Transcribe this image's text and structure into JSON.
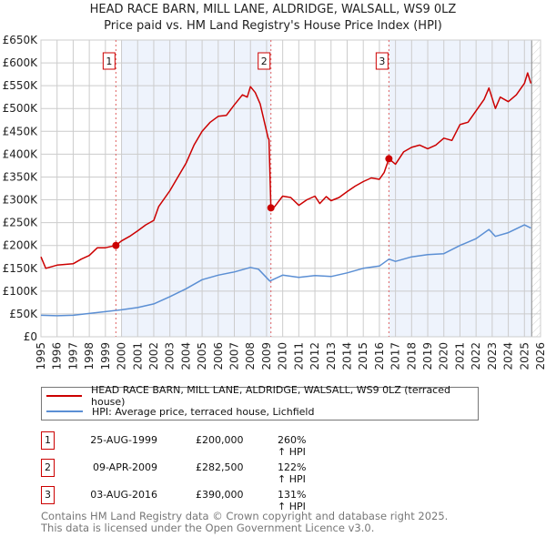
{
  "chart_data": {
    "type": "line",
    "title": "HEAD RACE BARN, MILL LANE, ALDRIDGE, WALSALL, WS9 0LZ",
    "subtitle": "Price paid vs. HM Land Registry's House Price Index (HPI)",
    "xlabel": "",
    "ylabel": "",
    "xlim": [
      1995,
      2026
    ],
    "ylim": [
      0,
      650000
    ],
    "x_ticks": [
      "1995",
      "1996",
      "1997",
      "1998",
      "1999",
      "2000",
      "2001",
      "2002",
      "2003",
      "2004",
      "2005",
      "2006",
      "2007",
      "2008",
      "2009",
      "2010",
      "2011",
      "2012",
      "2013",
      "2014",
      "2015",
      "2016",
      "2017",
      "2018",
      "2019",
      "2020",
      "2021",
      "2022",
      "2023",
      "2024",
      "2025",
      "2026"
    ],
    "y_ticks": [
      {
        "v": 0,
        "label": "£0"
      },
      {
        "v": 50000,
        "label": "£50K"
      },
      {
        "v": 100000,
        "label": "£100K"
      },
      {
        "v": 150000,
        "label": "£150K"
      },
      {
        "v": 200000,
        "label": "£200K"
      },
      {
        "v": 250000,
        "label": "£250K"
      },
      {
        "v": 300000,
        "label": "£300K"
      },
      {
        "v": 350000,
        "label": "£350K"
      },
      {
        "v": 400000,
        "label": "£400K"
      },
      {
        "v": 450000,
        "label": "£450K"
      },
      {
        "v": 500000,
        "label": "£500K"
      },
      {
        "v": 550000,
        "label": "£550K"
      },
      {
        "v": 600000,
        "label": "£600K"
      },
      {
        "v": 650000,
        "label": "£650K"
      }
    ],
    "grid": true,
    "series": [
      {
        "name": "HEAD RACE BARN, MILL LANE, ALDRIDGE, WALSALL, WS9 0LZ (terraced house)",
        "color": "#cc0000",
        "x": [
          1995,
          1995.3,
          1996,
          1997,
          1997.5,
          1998,
          1998.5,
          1999,
          1999.65,
          2000,
          2000.5,
          2001,
          2001.5,
          2002,
          2002.3,
          2003,
          2003.5,
          2004,
          2004.5,
          2005,
          2005.5,
          2006,
          2006.5,
          2007,
          2007.5,
          2007.8,
          2008,
          2008.3,
          2008.6,
          2009.1,
          2009.15,
          2009.27,
          2009.5,
          2010,
          2010.5,
          2011,
          2011.5,
          2012,
          2012.3,
          2012.7,
          2013,
          2013.5,
          2014,
          2014.5,
          2015,
          2015.5,
          2016,
          2016.3,
          2016.59,
          2017,
          2017.5,
          2018,
          2018.5,
          2019,
          2019.5,
          2020,
          2020.5,
          2021,
          2021.5,
          2022,
          2022.5,
          2022.8,
          2023.2,
          2023.5,
          2024,
          2024.5,
          2025,
          2025.2,
          2025.4
        ],
        "y": [
          175000,
          150000,
          157000,
          160000,
          170000,
          178000,
          195000,
          195000,
          200000,
          210000,
          220000,
          232000,
          245000,
          255000,
          285000,
          320000,
          350000,
          380000,
          420000,
          450000,
          470000,
          483000,
          485000,
          508000,
          530000,
          525000,
          548000,
          535000,
          510000,
          435000,
          432000,
          282500,
          285000,
          308000,
          305000,
          288000,
          300000,
          308000,
          292000,
          307000,
          298000,
          305000,
          318000,
          330000,
          340000,
          348000,
          345000,
          360000,
          390000,
          378000,
          405000,
          415000,
          420000,
          412000,
          420000,
          435000,
          430000,
          465000,
          470000,
          495000,
          520000,
          545000,
          500000,
          525000,
          515000,
          530000,
          555000,
          578000,
          555000
        ]
      },
      {
        "name": "HPI: Average price, terraced house, Lichfield",
        "color": "#5b8fd4",
        "x": [
          1995,
          1996,
          1997,
          1998,
          1999,
          2000,
          2001,
          2002,
          2003,
          2004,
          2005,
          2006,
          2007,
          2008,
          2008.5,
          2009.2,
          2010,
          2011,
          2012,
          2013,
          2014,
          2015,
          2016,
          2016.6,
          2017,
          2018,
          2019,
          2020,
          2021,
          2022,
          2022.8,
          2023.2,
          2024,
          2025,
          2025.4
        ],
        "y": [
          47000,
          46000,
          47000,
          51000,
          55000,
          59000,
          64000,
          72000,
          88000,
          105000,
          125000,
          135000,
          142000,
          152000,
          148000,
          122000,
          135000,
          130000,
          134000,
          132000,
          140000,
          150000,
          155000,
          170000,
          165000,
          175000,
          180000,
          182000,
          200000,
          215000,
          235000,
          220000,
          228000,
          245000,
          238000
        ]
      }
    ],
    "sales": [
      {
        "n": "1",
        "x": 1999.65,
        "price": 200000
      },
      {
        "n": "2",
        "x": 2009.27,
        "price": 282500
      },
      {
        "n": "3",
        "x": 2016.59,
        "price": 390000
      }
    ],
    "shaded_ranges": [
      [
        2000,
        2009.27
      ],
      [
        2016.59,
        2026
      ]
    ],
    "forecast_hatch_from": 2025.45,
    "legend_placement": "below"
  },
  "legend": {
    "property": "HEAD RACE BARN, MILL LANE, ALDRIDGE, WALSALL, WS9 0LZ (terraced house)",
    "hpi": "HPI: Average price, terraced house, Lichfield"
  },
  "transactions": [
    {
      "n": "1",
      "date": "25-AUG-1999",
      "price": "£200,000",
      "hpi": "260% ↑ HPI"
    },
    {
      "n": "2",
      "date": "09-APR-2009",
      "price": "£282,500",
      "hpi": "122% ↑ HPI"
    },
    {
      "n": "3",
      "date": "03-AUG-2016",
      "price": "£390,000",
      "hpi": "131% ↑ HPI"
    }
  ],
  "footer": {
    "line1": "Contains HM Land Registry data © Crown copyright and database right 2025.",
    "line2": "This data is licensed under the Open Government Licence v3.0."
  }
}
